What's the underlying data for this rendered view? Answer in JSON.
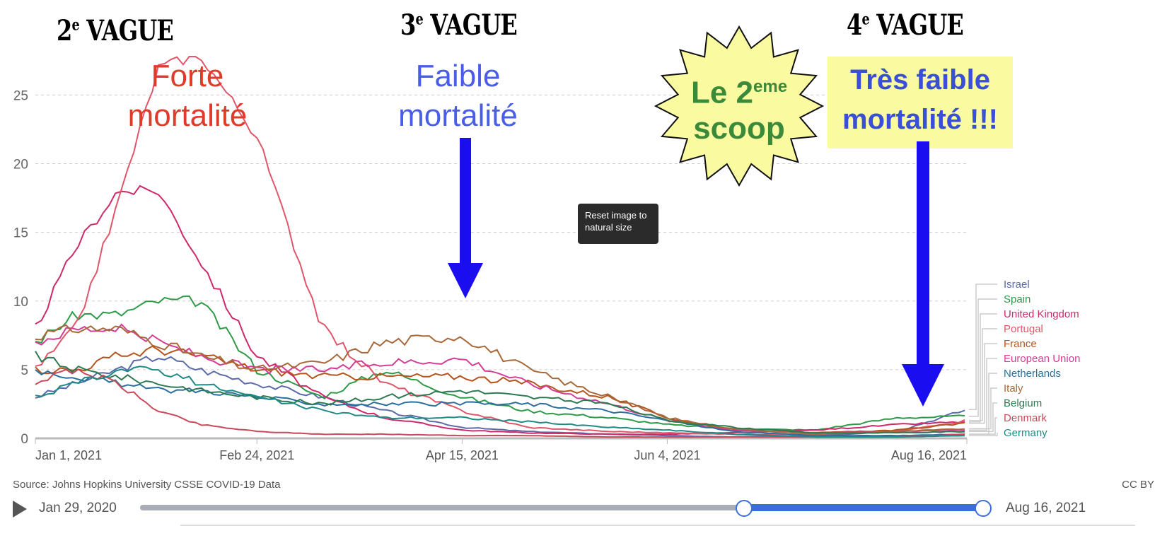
{
  "annotations": {
    "wave2": "2",
    "wave3": "3",
    "wave4": "4",
    "wave_sup": "e",
    "wave_word": "VAGUE",
    "strong": "Forte mortalité",
    "weak": "Faible mortalité",
    "very_weak": "Très faible mortalité !!!",
    "scoop_a": "Le 2",
    "scoop_sup": "eme",
    "scoop_b": "scoop"
  },
  "tooltip": "Reset image to natural size",
  "footer": {
    "source": "Source: Johns Hopkins University CSSE COVID-19 Data",
    "license": "CC BY"
  },
  "timeline": {
    "start": "Jan 29, 2020",
    "end": "Aug 16, 2021",
    "range_start_fraction": 0.6,
    "range_end_fraction": 1.0
  },
  "colors": {
    "arrow": "#1a0df0",
    "annot_red": "#e03a2a",
    "annot_blue": "#4a5de8",
    "scoop_green": "#3a8a3a",
    "slider": "#3a6fd8"
  },
  "chart_data": {
    "type": "line",
    "ylim": [
      0,
      27.8
    ],
    "yticks": [
      0,
      5,
      10,
      15,
      20,
      25
    ],
    "xticks": [
      {
        "day": 0,
        "label": "Jan 1, 2021"
      },
      {
        "day": 54,
        "label": "Feb 24, 2021"
      },
      {
        "day": 104,
        "label": "Apr 15, 2021"
      },
      {
        "day": 154,
        "label": "Jun 4, 2021"
      },
      {
        "day": 227,
        "label": "Aug 16, 2021"
      }
    ],
    "x_days": [
      0,
      10,
      20,
      30,
      40,
      54,
      70,
      85,
      104,
      120,
      140,
      154,
      170,
      190,
      210,
      227
    ],
    "series": [
      {
        "name": "Israel",
        "color": "#5b6aa8",
        "values": [
          3,
          4,
          5,
          6,
          5,
          4,
          3,
          2,
          0.8,
          0.5,
          0.3,
          0.2,
          0.1,
          0.2,
          0.5,
          2.1
        ]
      },
      {
        "name": "Spain",
        "color": "#2e9a48",
        "values": [
          7,
          9,
          9,
          10,
          10,
          5,
          3,
          5,
          3,
          2,
          1.5,
          1,
          0.7,
          0.6,
          1.5,
          1.6
        ]
      },
      {
        "name": "United Kingdom",
        "color": "#cc2a6a",
        "values": [
          8,
          14,
          18,
          18,
          13,
          6,
          3,
          1.5,
          0.6,
          0.4,
          0.3,
          0.3,
          0.4,
          0.6,
          1,
          1.2
        ]
      },
      {
        "name": "Portugal",
        "color": "#e0566a",
        "values": [
          5,
          8,
          17,
          27,
          28,
          22,
          8,
          4,
          2,
          0.8,
          0.5,
          0.4,
          0.3,
          0.3,
          0.5,
          1.3
        ]
      },
      {
        "name": "France",
        "color": "#b5541c",
        "values": [
          5,
          5,
          6,
          6.5,
          6,
          5,
          4.5,
          4.5,
          4.5,
          4,
          3,
          1.5,
          0.6,
          0.4,
          0.6,
          1.1
        ]
      },
      {
        "name": "European Union",
        "color": "#d43d96",
        "values": [
          7,
          8,
          8,
          7,
          6,
          5,
          5,
          5.5,
          5.8,
          4,
          2.5,
          1.3,
          0.6,
          0.4,
          0.5,
          0.6
        ]
      },
      {
        "name": "Netherlands",
        "color": "#2b6f9c",
        "values": [
          5,
          4.5,
          4,
          3.5,
          3.5,
          3,
          2.5,
          2.5,
          2.5,
          2.5,
          2,
          1.3,
          0.5,
          0.2,
          0.2,
          0.3
        ]
      },
      {
        "name": "Italy",
        "color": "#a8683a",
        "values": [
          7.5,
          8,
          8,
          7,
          6,
          5,
          5.5,
          7,
          7.5,
          5,
          3,
          1.5,
          0.7,
          0.3,
          0.5,
          0.7
        ]
      },
      {
        "name": "Belgium",
        "color": "#2d7a52",
        "values": [
          6,
          5,
          4.5,
          4,
          3.5,
          3,
          2.5,
          3,
          3.5,
          3,
          2.5,
          1.3,
          0.8,
          0.4,
          0.4,
          0.5
        ]
      },
      {
        "name": "Denmark",
        "color": "#c84a5a",
        "values": [
          4,
          5,
          4,
          2,
          1,
          0.5,
          0.3,
          0.3,
          0.2,
          0.2,
          0.1,
          0.1,
          0.1,
          0.1,
          0.1,
          0.3
        ]
      },
      {
        "name": "Germany",
        "color": "#1f8a86",
        "values": [
          3,
          4,
          5,
          5,
          4,
          3,
          2,
          1.5,
          1.5,
          1.2,
          0.8,
          0.6,
          0.3,
          0.1,
          0.1,
          0.2
        ]
      }
    ]
  }
}
